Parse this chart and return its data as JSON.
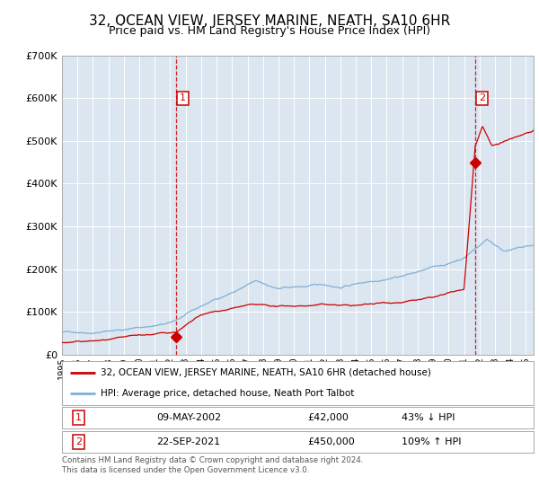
{
  "title": "32, OCEAN VIEW, JERSEY MARINE, NEATH, SA10 6HR",
  "subtitle": "Price paid vs. HM Land Registry's House Price Index (HPI)",
  "title_fontsize": 11,
  "subtitle_fontsize": 9,
  "background_color": "#dce6f0",
  "plot_bg_color": "#dce6f0",
  "fig_bg_color": "#ffffff",
  "hpi_color": "#7fb0d9",
  "price_color": "#cc0000",
  "ylim": [
    0,
    700000
  ],
  "yticks": [
    0,
    100000,
    200000,
    300000,
    400000,
    500000,
    600000,
    700000
  ],
  "ytick_labels": [
    "£0",
    "£100K",
    "£200K",
    "£300K",
    "£400K",
    "£500K",
    "£600K",
    "£700K"
  ],
  "sale1_date_label": "09-MAY-2002",
  "sale1_price": 42000,
  "sale1_price_label": "£42,000",
  "sale1_pct_label": "43% ↓ HPI",
  "sale1_year": 2002.36,
  "sale2_date_label": "22-SEP-2021",
  "sale2_price": 450000,
  "sale2_price_label": "£450,000",
  "sale2_pct_label": "109% ↑ HPI",
  "sale2_year": 2021.72,
  "legend_line1": "32, OCEAN VIEW, JERSEY MARINE, NEATH, SA10 6HR (detached house)",
  "legend_line2": "HPI: Average price, detached house, Neath Port Talbot",
  "footnote": "Contains HM Land Registry data © Crown copyright and database right 2024.\nThis data is licensed under the Open Government Licence v3.0.",
  "xmin": 1995.0,
  "xmax": 2025.5
}
